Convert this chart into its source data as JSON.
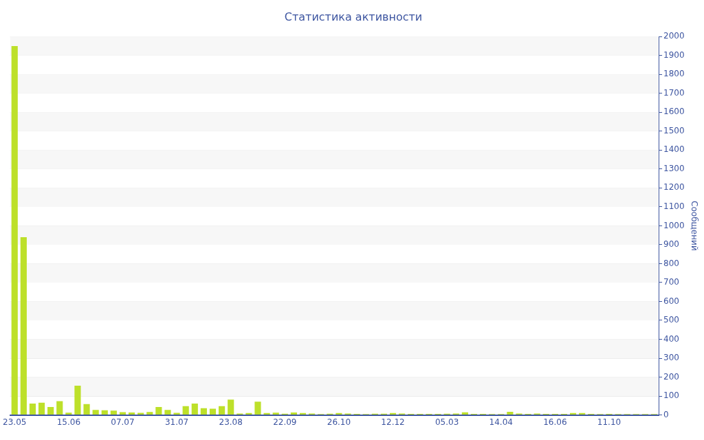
{
  "chart_data": {
    "type": "bar",
    "title": "Статистика активности",
    "ylabel": "Сообщений",
    "categories": [
      "23.05",
      null,
      null,
      null,
      null,
      null,
      "15.06",
      null,
      null,
      null,
      null,
      null,
      "07.07",
      null,
      null,
      null,
      null,
      null,
      "31.07",
      null,
      null,
      null,
      null,
      null,
      "23.08",
      null,
      null,
      null,
      null,
      null,
      "22.09",
      null,
      null,
      null,
      null,
      null,
      "26.10",
      null,
      null,
      null,
      null,
      null,
      "12.12",
      null,
      null,
      null,
      null,
      null,
      "05.03",
      null,
      null,
      null,
      null,
      null,
      "14.04",
      null,
      null,
      null,
      null,
      null,
      "16.06",
      null,
      null,
      null,
      null,
      null,
      "11.10",
      null,
      null,
      null,
      null,
      null
    ],
    "values": [
      1950,
      940,
      60,
      65,
      42,
      73,
      12,
      155,
      58,
      27,
      25,
      23,
      15,
      13,
      11,
      16,
      42,
      27,
      11,
      47,
      60,
      36,
      33,
      47,
      81,
      8,
      10,
      70,
      10,
      12,
      7,
      13,
      10,
      8,
      5,
      7,
      10,
      8,
      6,
      5,
      7,
      7,
      10,
      8,
      6,
      6,
      6,
      6,
      7,
      8,
      14,
      6,
      6,
      5,
      5,
      17,
      8,
      6,
      8,
      6,
      6,
      6,
      10,
      10,
      6,
      5,
      6,
      5,
      5,
      5,
      5,
      5
    ],
    "color": "#bde02a",
    "ylim": [
      0,
      2000
    ],
    "yticks": [
      0,
      100,
      200,
      300,
      400,
      500,
      600,
      700,
      800,
      900,
      1000,
      1100,
      1200,
      1300,
      1400,
      1500,
      1600,
      1700,
      1800,
      1900,
      2000
    ],
    "grid": "y"
  }
}
